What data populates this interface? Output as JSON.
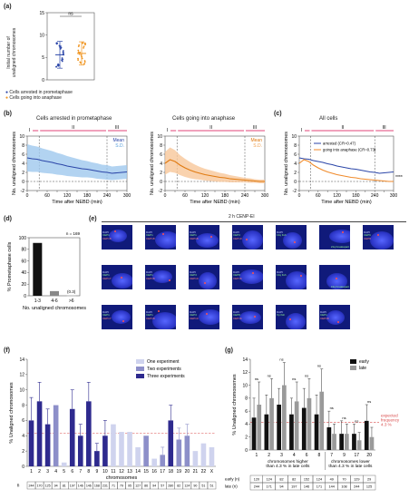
{
  "panel_a": {
    "label": "(a)",
    "ylabel": "Initial number of\nunaligned chromosomes",
    "ns": "ns",
    "legend": [
      "Cells arrested in prometaphase",
      "Cells going into anaphase"
    ],
    "colors": {
      "arrested": "#2b46a8",
      "anaphase": "#f0941f"
    },
    "chart_data": {
      "type": "scatter",
      "ylim": [
        0,
        15
      ],
      "yticks": [
        0,
        5,
        10,
        15
      ],
      "series": [
        {
          "mean": 5.6,
          "sd": 3.0
        },
        {
          "mean": 5.9,
          "sd": 2.6
        }
      ]
    }
  },
  "panel_b": {
    "label": "(b)",
    "left": {
      "title": "Cells arrested in prometaphase",
      "legend_mean": "Mean",
      "legend_sd": "S.D.",
      "color": "#2b46a8",
      "fill": "#9fc8ee"
    },
    "right": {
      "title": "Cells going into anaphase",
      "legend_mean": "Mean",
      "legend_sd": "S.D.",
      "color": "#e07a10",
      "fill": "#f7c79a"
    },
    "ylabel": "No. unaligned chromosomes",
    "xlabel": "Time after NEBD (min)",
    "phases": [
      "I",
      "II",
      "III"
    ],
    "chart_data": {
      "type": "area",
      "x": [
        0,
        15,
        30,
        45,
        60,
        75,
        90,
        105,
        120,
        135,
        150,
        165,
        180,
        195,
        210,
        225,
        240,
        255,
        270,
        285,
        300
      ],
      "xticks": [
        0,
        30,
        60,
        90,
        120,
        150,
        180,
        210,
        240,
        270,
        300
      ],
      "xticklabels": [
        "0",
        "",
        "60",
        "",
        "120",
        "",
        "180",
        "",
        "240",
        "",
        "300"
      ],
      "ylim": [
        -2,
        10
      ],
      "yticks": [
        -2,
        0,
        2,
        4,
        6,
        8,
        10
      ],
      "vlines": [
        36,
        240
      ],
      "series": [
        {
          "mean": [
            5.2,
            5.0,
            4.9,
            4.6,
            4.4,
            4.2,
            3.9,
            3.7,
            3.4,
            3.2,
            3.0,
            2.8,
            2.7,
            2.5,
            2.3,
            2.1,
            2.0,
            1.8,
            1.9,
            2.0,
            2.1
          ],
          "sd": [
            3.0,
            2.9,
            2.8,
            2.7,
            2.6,
            2.5,
            2.4,
            2.3,
            2.2,
            2.1,
            2.0,
            1.9,
            1.8,
            1.7,
            1.7,
            1.6,
            1.6,
            1.5,
            1.5,
            1.5,
            1.5
          ]
        },
        {
          "mean": [
            4.0,
            4.8,
            4.4,
            3.6,
            3.0,
            2.5,
            2.1,
            1.8,
            1.5,
            1.3,
            1.1,
            0.9,
            0.8,
            0.6,
            0.5,
            0.4,
            0.3,
            0.2,
            0.1,
            0.0,
            0.0
          ],
          "sd": [
            2.5,
            2.7,
            2.5,
            2.2,
            2.0,
            1.8,
            1.6,
            1.4,
            1.3,
            1.2,
            1.1,
            1.0,
            0.9,
            0.8,
            0.7,
            0.6,
            0.5,
            0.5,
            0.4,
            0.4,
            0.4
          ]
        }
      ]
    }
  },
  "panel_c": {
    "label": "(c)",
    "title": "All cells",
    "legend": [
      "arrested (CR=0.47)",
      "going into anaphase (CR=0.73)"
    ],
    "stars": "****",
    "ylabel": "No. unaligned chromosomes",
    "xlabel": "Time after NEBD (min)",
    "phases": [
      "I",
      "II",
      "III"
    ]
  },
  "panel_d": {
    "label": "(d)",
    "n": "n = 169",
    "ylabel": "% Prometaphase cells",
    "xlabel": "No. unaligned chromosomes",
    "annot": "(0.3)",
    "chart_data": {
      "type": "bar",
      "categories": [
        "1-3",
        "4-6",
        ">6"
      ],
      "values": [
        91,
        8,
        0.3
      ],
      "ylim": [
        0,
        100
      ],
      "yticks": [
        0,
        20,
        40,
        60,
        80,
        100
      ]
    }
  },
  "panel_e": {
    "label": "(e)",
    "title": "2 h CENP-EI",
    "cells": [
      {
        "l1": "DAPI",
        "l2": "CEP1",
        "l3": "CEP18",
        "tag": ""
      },
      {
        "l1": "DAPI",
        "l2": "CEP1",
        "l3": "CEP18",
        "tag": ""
      },
      {
        "l1": "DAPI",
        "l2": "CEP1",
        "l3": "CEP18",
        "tag": ""
      },
      {
        "l1": "DAPI",
        "l2": "CEP3",
        "l3": "CEP10",
        "tag": ""
      },
      {
        "l1": "DAPI",
        "l2": "13q fish",
        "l3": "",
        "tag": ""
      },
      {
        "l1": "",
        "l2": "",
        "l3": "",
        "tag": "21q breakapart"
      },
      {
        "l1": "DAPI",
        "l2": "CEP6",
        "l3": "CEP8",
        "tag": ""
      },
      {
        "l1": "DAPI",
        "l2": "CEP1",
        "l3": "CEP17",
        "tag": ""
      },
      {
        "l1": "DAPI",
        "l2": "CEP1",
        "l3": "CEP18",
        "tag": ""
      },
      {
        "l1": "DAPI",
        "l2": "CEP3",
        "l3": "CEP10",
        "tag": ""
      },
      {
        "l1": "DAPI",
        "l2": "CEP8",
        "l3": "CEP16",
        "tag": ""
      },
      {
        "l1": "DAPI",
        "l2": "13q fish",
        "l3": "",
        "tag": ""
      },
      {
        "l1": "",
        "l2": "",
        "l3": "",
        "tag": "19q breakapart"
      },
      {
        "l1": "DAPI",
        "l2": "CEP1",
        "l3": "CEP17",
        "tag": ""
      },
      {
        "l1": "DAPI",
        "l2": "CEP1",
        "l3": "CEP18",
        "tag": ""
      },
      {
        "l1": "DAPI",
        "l2": "CEP3",
        "l3": "CEP10",
        "tag": ""
      },
      {
        "l1": "DAPI",
        "l2": "CEP8",
        "l3": "CEP16",
        "tag": ""
      },
      {
        "l1": "DAPI",
        "l2": "Xp fish",
        "l3": "",
        "tag": ""
      },
      {
        "l1": "DAPI",
        "l2": "CEP1",
        "l3": "CEP18",
        "tag": ""
      }
    ]
  },
  "panel_f": {
    "label": "(f)",
    "legend": [
      "One experiment",
      "Two experiments",
      "Three experiments"
    ],
    "colors": [
      "#cfd3ee",
      "#8d8fc9",
      "#2e2a8e"
    ],
    "ylabel": "% Unaligned chromosomes",
    "xlabel": "chromosomes",
    "n_label": "n",
    "chart_data": {
      "type": "bar",
      "categories": [
        "1",
        "2",
        "3",
        "4",
        "5",
        "6",
        "7",
        "8",
        "9",
        "10",
        "11",
        "12",
        "13",
        "14",
        "15",
        "16",
        "17",
        "18",
        "19",
        "20",
        "21",
        "22",
        "X"
      ],
      "values": [
        6,
        8.5,
        5.5,
        8,
        0.5,
        7.5,
        4,
        8.5,
        2,
        4,
        5.5,
        4.5,
        4.5,
        2.5,
        4,
        1,
        1.5,
        6,
        3.5,
        4,
        2,
        3,
        2.5
      ],
      "errors": [
        3,
        2.5,
        2,
        0,
        0,
        2.5,
        1.5,
        2.5,
        1,
        2,
        0,
        0,
        0,
        0,
        0,
        0,
        1,
        2,
        1.5,
        1.5,
        0,
        0,
        0
      ],
      "experiments": [
        3,
        3,
        3,
        2,
        1,
        3,
        3,
        3,
        3,
        3,
        1,
        1,
        1,
        1,
        2,
        1,
        2,
        3,
        2,
        2,
        1,
        1,
        1
      ],
      "ylim": [
        0,
        14
      ],
      "yticks": [
        0,
        2,
        4,
        6,
        8,
        10,
        12,
        14
      ],
      "dashed_y": 4.3,
      "n": [
        "244",
        "170",
        "125",
        "94",
        "81",
        "197",
        "146",
        "146",
        "168",
        "231",
        "71",
        "79",
        "95",
        "127",
        "86",
        "94",
        "57",
        "280",
        "82",
        "124",
        "90",
        "51",
        "51"
      ]
    }
  },
  "panel_g": {
    "label": "(g)",
    "legend": [
      "early",
      "late"
    ],
    "colors": {
      "early": "#111111",
      "late": "#9a9a9a"
    },
    "ylabel": "% Unaligned chromosomes",
    "ns": "ns",
    "expected": "expected\nfrequency\n4.3 %",
    "group_left": "chromosomes higher\nthan 4.3 % in late cells",
    "group_right": "chromosomes lower\nthan 4.3 % in late cells",
    "row_early": "early (n)",
    "row_late": "late (n)",
    "chart_data": {
      "type": "bar",
      "categories": [
        "1",
        "2",
        "3",
        "4",
        "6",
        "8",
        "7",
        "9",
        "17",
        "20"
      ],
      "series": [
        {
          "name": "early",
          "values": [
            5,
            5.5,
            7,
            5.5,
            6.5,
            5.5,
            3.5,
            2.5,
            2.5,
            4.5
          ],
          "errors": [
            3,
            3,
            2.5,
            2.5,
            3,
            3,
            2.5,
            2,
            1.5,
            2.5
          ]
        },
        {
          "name": "late",
          "values": [
            7,
            8,
            10,
            7.5,
            8,
            9,
            2.5,
            2.5,
            1.5,
            2
          ],
          "errors": [
            3.5,
            3,
            3.5,
            3,
            3,
            3.5,
            1.5,
            1.5,
            1.2,
            1.5
          ]
        }
      ],
      "ylim": [
        0,
        14
      ],
      "yticks": [
        0,
        2,
        4,
        6,
        8,
        10,
        12,
        14
      ],
      "dashed_y": 4.3,
      "early_n": [
        "120",
        "124",
        "82",
        "82",
        "152",
        "124",
        "49",
        "70",
        "129",
        "29"
      ],
      "late_n": [
        "244",
        "171",
        "94",
        "197",
        "146",
        "171",
        "144",
        "108",
        "244",
        "125"
      ]
    }
  }
}
